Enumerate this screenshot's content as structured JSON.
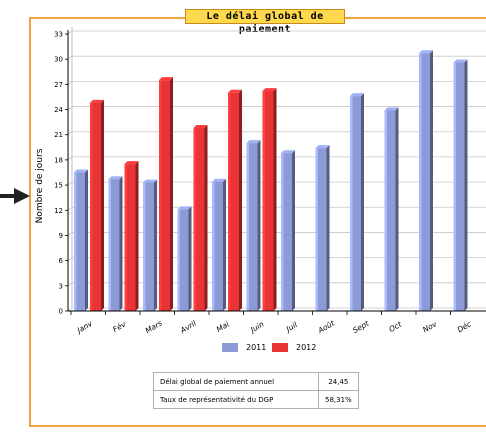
{
  "chart_data": {
    "type": "bar",
    "title": "Le délai global de paiement",
    "ylabel": "Nombre de jours",
    "xlabel": "",
    "ylim": [
      0,
      33
    ],
    "yticks": [
      0,
      3,
      6,
      9,
      12,
      15,
      18,
      21,
      24,
      27,
      30,
      33
    ],
    "grid": "horizontal",
    "legend_position": "bottom",
    "categories": [
      "Janv",
      "Fév",
      "Mars",
      "Avril",
      "Mai",
      "Juin",
      "Juil",
      "Août",
      "Sept",
      "Oct",
      "Nov",
      "Déc"
    ],
    "series": [
      {
        "name": "2011",
        "color": "#8c9ad6",
        "values": [
          16.5,
          15.7,
          15.3,
          12.1,
          15.4,
          20.0,
          18.8,
          19.4,
          25.6,
          23.9,
          30.7,
          29.6
        ]
      },
      {
        "name": "2012",
        "color": "#e83434",
        "values": [
          24.8,
          17.5,
          27.5,
          21.8,
          26.0,
          26.2,
          null,
          null,
          null,
          null,
          null,
          null
        ]
      }
    ]
  },
  "stats_table": {
    "rows": [
      {
        "label": "Délai global de paiement annuel",
        "value": "24,45"
      },
      {
        "label": "Taux de représentativité du DGP",
        "value": "58,31%"
      }
    ]
  }
}
